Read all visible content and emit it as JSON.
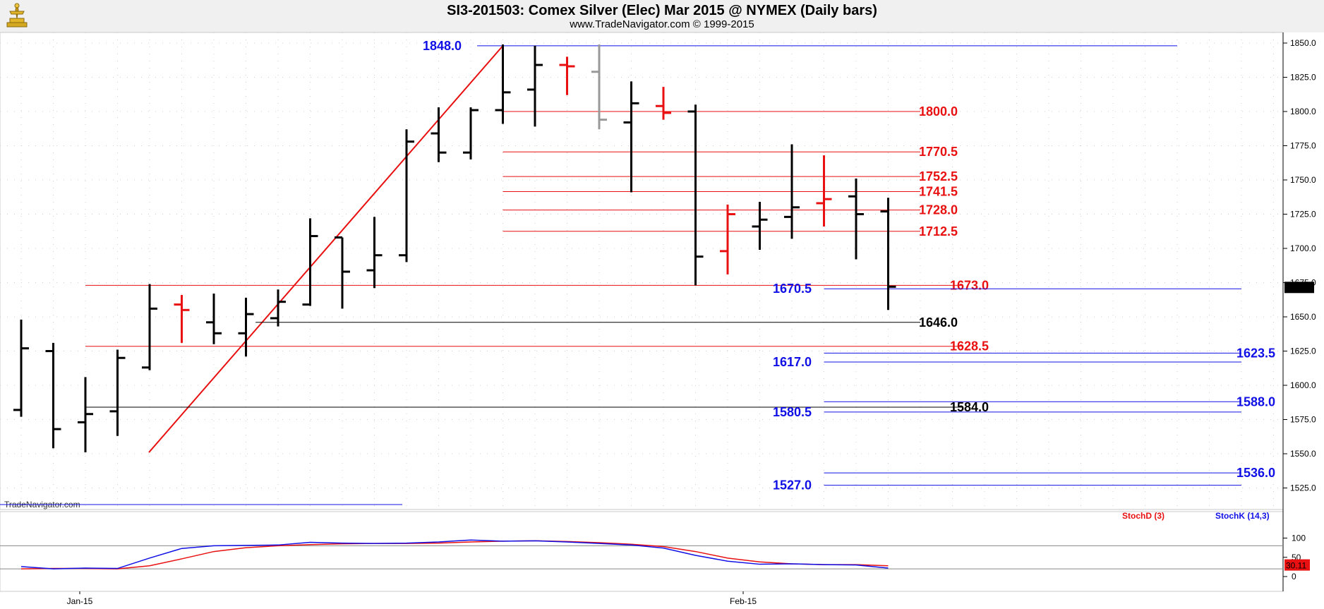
{
  "header": {
    "title": "SI3-201503:  Comex Silver (Elec) Mar 2015 @ NYMEX  (Daily bars)",
    "subtitle": "www.TradeNavigator.com © 1999-2015"
  },
  "watermark": "TradeNavigator.com",
  "colors": {
    "blue": "#1010e6",
    "red": "#e81010",
    "black": "#000000",
    "gray": "#999999"
  },
  "chart_data": [
    {
      "type": "bar",
      "title": "SI3-201503:  Comex Silver (Elec) Mar 2015 @ NYMEX  (Daily bars)",
      "bar_style": "ohlc",
      "x_ticks": [
        "Jan-15",
        "Feb-15"
      ],
      "y_ticks": [
        1525,
        1550,
        1575,
        1600,
        1625,
        1650,
        1675,
        1700,
        1725,
        1750,
        1775,
        1800,
        1825,
        1850
      ],
      "y_tick_labels": [
        "1525.0",
        "1550.0",
        "1575.0",
        "1600.0",
        "1625.0",
        "1650.0",
        "1675.0",
        "1700.0",
        "1725.0",
        "1750.0",
        "1775.0",
        "1800.0",
        "1825.0",
        "1850.0"
      ],
      "ylim": [
        1510,
        1855
      ],
      "grid": true,
      "last_price": "1671.5",
      "bars": [
        {
          "i": 0,
          "date": "2014-12-31",
          "o": 1582,
          "h": 1648,
          "l": 1577,
          "c": 1627,
          "color": "black"
        },
        {
          "i": 1,
          "date": "2015-01-02",
          "o": 1625,
          "h": 1631,
          "l": 1554,
          "c": 1568,
          "color": "black"
        },
        {
          "i": 2,
          "date": "2015-01-05",
          "o": 1573,
          "h": 1606,
          "l": 1551,
          "c": 1579,
          "color": "black"
        },
        {
          "i": 3,
          "date": "2015-01-06",
          "o": 1581,
          "h": 1626,
          "l": 1563,
          "c": 1620,
          "color": "black"
        },
        {
          "i": 4,
          "date": "2015-01-07",
          "o": 1613,
          "h": 1674,
          "l": 1611,
          "c": 1656,
          "color": "black"
        },
        {
          "i": 5,
          "date": "2015-01-08",
          "o": 1659,
          "h": 1666,
          "l": 1631,
          "c": 1655,
          "color": "red"
        },
        {
          "i": 6,
          "date": "2015-01-09",
          "o": 1646,
          "h": 1667,
          "l": 1630,
          "c": 1638,
          "color": "black"
        },
        {
          "i": 7,
          "date": "2015-01-12",
          "o": 1638,
          "h": 1664,
          "l": 1621,
          "c": 1652,
          "color": "black"
        },
        {
          "i": 8,
          "date": "2015-01-13",
          "o": 1649,
          "h": 1670,
          "l": 1643,
          "c": 1661,
          "color": "black"
        },
        {
          "i": 9,
          "date": "2015-01-14",
          "o": 1659,
          "h": 1722,
          "l": 1658,
          "c": 1709,
          "color": "black"
        },
        {
          "i": 10,
          "date": "2015-01-15",
          "o": 1708,
          "h": 1708,
          "l": 1656,
          "c": 1683,
          "color": "black"
        },
        {
          "i": 11,
          "date": "2015-01-16",
          "o": 1684,
          "h": 1723,
          "l": 1671,
          "c": 1695,
          "color": "black"
        },
        {
          "i": 12,
          "date": "2015-01-19",
          "o": 1695,
          "h": 1787,
          "l": 1690,
          "c": 1778,
          "color": "black"
        },
        {
          "i": 13,
          "date": "2015-01-20",
          "o": 1784,
          "h": 1803,
          "l": 1763,
          "c": 1770,
          "color": "black"
        },
        {
          "i": 14,
          "date": "2015-01-21",
          "o": 1770,
          "h": 1803,
          "l": 1765,
          "c": 1801,
          "color": "black"
        },
        {
          "i": 15,
          "date": "2015-01-22",
          "o": 1801,
          "h": 1849,
          "l": 1791,
          "c": 1814,
          "color": "black"
        },
        {
          "i": 16,
          "date": "2015-01-23",
          "o": 1816,
          "h": 1848,
          "l": 1789,
          "c": 1834,
          "color": "black"
        },
        {
          "i": 17,
          "date": "2015-01-26",
          "o": 1834,
          "h": 1840,
          "l": 1812,
          "c": 1833,
          "color": "red"
        },
        {
          "i": 18,
          "date": "2015-01-27",
          "o": 1829,
          "h": 1849,
          "l": 1787,
          "c": 1794,
          "color": "gray"
        },
        {
          "i": 19,
          "date": "2015-01-28",
          "o": 1792,
          "h": 1822,
          "l": 1741,
          "c": 1806,
          "color": "black"
        },
        {
          "i": 20,
          "date": "2015-01-29",
          "o": 1804,
          "h": 1818,
          "l": 1794,
          "c": 1799,
          "color": "red"
        },
        {
          "i": 21,
          "date": "2015-01-30",
          "o": 1800,
          "h": 1805,
          "l": 1673,
          "c": 1694,
          "color": "black"
        },
        {
          "i": 22,
          "date": "2015-02-02",
          "o": 1698,
          "h": 1732,
          "l": 1681,
          "c": 1725,
          "color": "red"
        },
        {
          "i": 23,
          "date": "2015-02-03",
          "o": 1716,
          "h": 1734,
          "l": 1699,
          "c": 1721,
          "color": "black"
        },
        {
          "i": 24,
          "date": "2015-02-04",
          "o": 1723,
          "h": 1776,
          "l": 1707,
          "c": 1730,
          "color": "black"
        },
        {
          "i": 25,
          "date": "2015-02-05",
          "o": 1733,
          "h": 1768,
          "l": 1716,
          "c": 1736,
          "color": "red"
        },
        {
          "i": 26,
          "date": "2015-02-06",
          "o": 1738,
          "h": 1751,
          "l": 1692,
          "c": 1725,
          "color": "black"
        },
        {
          "i": 27,
          "date": "2015-02-09",
          "o": 1727,
          "h": 1737,
          "l": 1655,
          "c": 1672,
          "color": "black"
        }
      ],
      "trendline": {
        "from": {
          "i": 2,
          "price": 1551
        },
        "to": {
          "i": 15,
          "price": 1848
        },
        "color": "red"
      },
      "levels": [
        {
          "label": "1848.0",
          "price": 1848.0,
          "color": "blue",
          "from_i": 14.2,
          "to_i": 36.0,
          "label_side": "left"
        },
        {
          "label": "1800.0",
          "price": 1800.0,
          "color": "red",
          "from_i": 15.0,
          "to_i": 28.0,
          "label_side": "right"
        },
        {
          "label": "1770.5",
          "price": 1770.5,
          "color": "red",
          "from_i": 15.0,
          "to_i": 28.0,
          "label_side": "right"
        },
        {
          "label": "1752.5",
          "price": 1752.5,
          "color": "red",
          "from_i": 15.0,
          "to_i": 28.0,
          "label_side": "right"
        },
        {
          "label": "1741.5",
          "price": 1741.5,
          "color": "red",
          "from_i": 15.0,
          "to_i": 28.0,
          "label_side": "right"
        },
        {
          "label": "1728.0",
          "price": 1728.0,
          "color": "red",
          "from_i": 15.0,
          "to_i": 28.0,
          "label_side": "right"
        },
        {
          "label": "1712.5",
          "price": 1712.5,
          "color": "red",
          "from_i": 15.0,
          "to_i": 28.0,
          "label_side": "right"
        },
        {
          "label": "1673.0",
          "price": 1673.0,
          "color": "red",
          "from_i": 2.0,
          "to_i": 29.3,
          "label_side": "right"
        },
        {
          "label": "1670.5",
          "price": 1670.5,
          "color": "blue",
          "from_i": 25.0,
          "to_i": 38.0,
          "label_side": "left"
        },
        {
          "label": "1646.0",
          "price": 1646.0,
          "color": "black",
          "from_i": 7.3,
          "to_i": 28.0,
          "label_side": "right"
        },
        {
          "label": "1628.5",
          "price": 1628.5,
          "color": "red",
          "from_i": 2.0,
          "to_i": 29.3,
          "label_side": "right"
        },
        {
          "label": "1623.5",
          "price": 1623.5,
          "color": "blue",
          "from_i": 25.0,
          "to_i": 38.0,
          "label_side": "right"
        },
        {
          "label": "1617.0",
          "price": 1617.0,
          "color": "blue",
          "from_i": 25.0,
          "to_i": 38.0,
          "label_side": "left"
        },
        {
          "label": "1588.0",
          "price": 1588.0,
          "color": "blue",
          "from_i": 25.0,
          "to_i": 38.0,
          "label_side": "right"
        },
        {
          "label": "1584.0",
          "price": 1584.0,
          "color": "black",
          "from_i": 2.0,
          "to_i": 29.3,
          "label_side": "right"
        },
        {
          "label": "1580.5",
          "price": 1580.5,
          "color": "blue",
          "from_i": 25.0,
          "to_i": 38.0,
          "label_side": "left"
        },
        {
          "label": "1536.0",
          "price": 1536.0,
          "color": "blue",
          "from_i": 25.0,
          "to_i": 38.0,
          "label_side": "right"
        },
        {
          "label": "1527.0",
          "price": 1527.0,
          "color": "blue",
          "from_i": 25.0,
          "to_i": 38.0,
          "label_side": "left"
        }
      ]
    },
    {
      "type": "line",
      "ylim": [
        0,
        100
      ],
      "y_ticks": [
        0,
        50,
        100
      ],
      "y_tick_labels": [
        "0",
        "50",
        "100"
      ],
      "reference_lines": [
        80,
        20
      ],
      "legend": [
        "StochD (3)",
        "StochK (14,3)"
      ],
      "last_value": "30.11",
      "series": [
        {
          "name": "StochD (3)",
          "color": "red",
          "values": [
            20,
            21,
            21,
            20,
            28,
            46,
            65,
            75,
            80,
            83,
            85,
            86,
            86,
            87,
            90,
            92,
            93,
            91,
            88,
            84,
            78,
            65,
            48,
            38,
            33,
            31,
            31,
            28
          ]
        },
        {
          "name": "StochK (14,3)",
          "color": "blue",
          "values": [
            26,
            20,
            22,
            21,
            48,
            73,
            80,
            81,
            82,
            89,
            87,
            86,
            87,
            90,
            95,
            92,
            93,
            90,
            86,
            82,
            74,
            55,
            40,
            32,
            33,
            31,
            30,
            22
          ]
        }
      ]
    }
  ]
}
